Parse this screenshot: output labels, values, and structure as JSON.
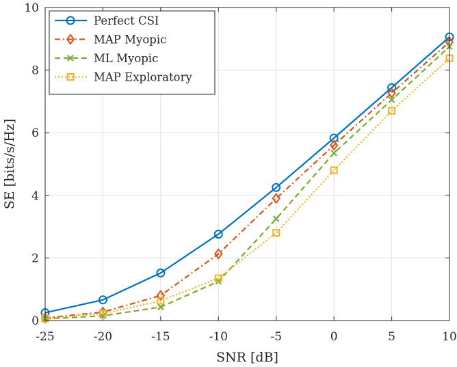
{
  "chart_data": {
    "type": "line",
    "title": "",
    "xlabel": "SNR [dB]",
    "ylabel": "SE [bits/s/Hz]",
    "xlim": [
      -25,
      10
    ],
    "ylim": [
      0,
      10
    ],
    "grid": true,
    "legend_position": "top-left",
    "x": [
      -25,
      -20,
      -15,
      -10,
      -5,
      0,
      5,
      10
    ],
    "x_tick_labels": [
      "-25",
      "-20",
      "-15",
      "-10",
      "-5",
      "0",
      "5",
      "10"
    ],
    "y_ticks": [
      0,
      2,
      4,
      6,
      8,
      10
    ],
    "y_tick_labels": [
      "0",
      "2",
      "4",
      "6",
      "8",
      "10"
    ],
    "series": [
      {
        "name": "Perfect CSI",
        "color": "#0072BD",
        "line_style": "solid",
        "marker": "circle",
        "values": [
          0.25,
          0.66,
          1.52,
          2.76,
          4.25,
          5.83,
          7.44,
          9.06
        ]
      },
      {
        "name": "MAP Myopic",
        "color": "#D95319",
        "line_style": "dashdot",
        "marker": "diamond",
        "values": [
          0.08,
          0.27,
          0.8,
          2.13,
          3.9,
          5.6,
          7.27,
          8.9
        ]
      },
      {
        "name": "ML Myopic",
        "color": "#77AC30",
        "line_style": "dashed",
        "marker": "x",
        "values": [
          0.05,
          0.15,
          0.43,
          1.25,
          3.25,
          5.35,
          7.05,
          8.75
        ]
      },
      {
        "name": "MAP Exploratory",
        "color": "#EDB120",
        "line_style": "dotted",
        "marker": "square",
        "values": [
          0.06,
          0.22,
          0.63,
          1.35,
          2.8,
          4.8,
          6.7,
          8.38
        ]
      }
    ]
  }
}
